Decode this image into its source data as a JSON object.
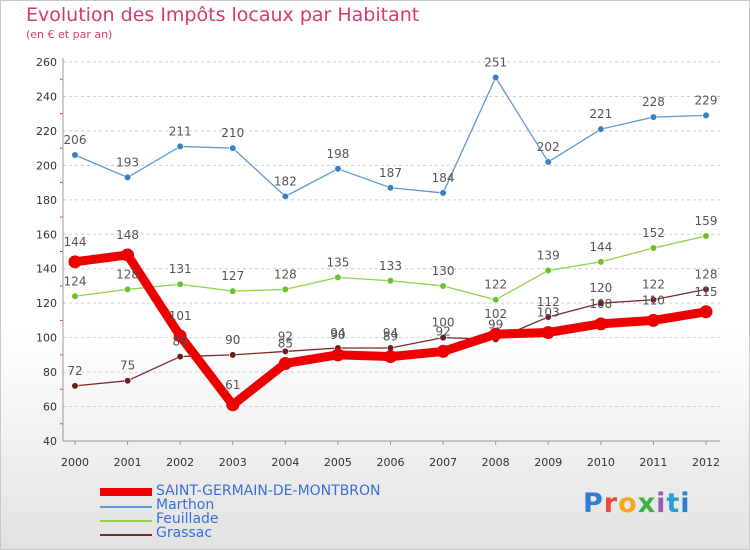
{
  "title": "Evolution des Impôts locaux par Habitant",
  "subtitle": "(en € et par an)",
  "logo": "Proxiti",
  "chart_data": {
    "type": "line",
    "title": "Evolution des Impôts locaux par Habitant",
    "subtitle": "(en € et par an)",
    "xlabel": "",
    "ylabel": "",
    "ylim": [
      40,
      260
    ],
    "yticks": [
      40,
      60,
      80,
      100,
      120,
      140,
      160,
      180,
      200,
      220,
      240,
      260
    ],
    "grid": "horizontal dashed",
    "legend_position": "bottom-left",
    "categories": [
      "2000",
      "2001",
      "2002",
      "2003",
      "2004",
      "2005",
      "2006",
      "2007",
      "2008",
      "2009",
      "2010",
      "2011",
      "2012"
    ],
    "series": [
      {
        "name": "Marthon",
        "color": "#5b9bd5",
        "marker": "#3a7fc1",
        "values": [
          206,
          193,
          211,
          210,
          182,
          198,
          187,
          184,
          251,
          202,
          221,
          228,
          229
        ]
      },
      {
        "name": "Feuillade",
        "color": "#8fd44a",
        "marker": "#6cc22a",
        "values": [
          124,
          128,
          131,
          127,
          128,
          135,
          133,
          130,
          122,
          139,
          144,
          152,
          159
        ]
      },
      {
        "name": "Grassac",
        "color": "#7a2a2a",
        "marker": "#6b1f1f",
        "values": [
          72,
          75,
          89,
          90,
          92,
          94,
          94,
          100,
          99,
          112,
          120,
          122,
          128
        ]
      },
      {
        "name": "SAINT-GERMAIN-DE-MONTBRON",
        "color": "#ee0000",
        "marker": "#ee0000",
        "values": [
          144,
          148,
          101,
          61,
          85,
          90,
          89,
          92,
          102,
          103,
          108,
          110,
          115
        ]
      }
    ],
    "data_labels": [
      {
        "series": "Marthon",
        "labels": [
          "206",
          "193",
          "211",
          "210",
          "182",
          "198",
          "187",
          "184",
          "251",
          "202",
          "221",
          "228",
          "229"
        ]
      },
      {
        "series": "Feuillade",
        "labels": [
          "124",
          "128",
          "131",
          "127",
          "128",
          "135",
          "133",
          "130",
          "122",
          "139",
          "144",
          "152",
          "159"
        ]
      },
      {
        "series": "Grassac",
        "labels": [
          "72",
          "75",
          "89",
          "90",
          "92",
          "94",
          "94",
          "100",
          "99",
          "112",
          "120",
          "122",
          "128"
        ]
      },
      {
        "series": "SAINT-GERMAIN-DE-MONTBRON",
        "labels": [
          "144",
          "148",
          "101",
          "61",
          "85",
          "90",
          "89",
          "92",
          "102",
          "103",
          "108",
          "110",
          "115"
        ]
      }
    ],
    "legend": [
      {
        "label": "SAINT-GERMAIN-DE-MONTBRON",
        "color": "#ee0000"
      },
      {
        "label": "Marthon",
        "color": "#5b9bd5"
      },
      {
        "label": "Feuillade",
        "color": "#8fd44a"
      },
      {
        "label": "Grassac",
        "color": "#7a2a2a"
      }
    ]
  }
}
